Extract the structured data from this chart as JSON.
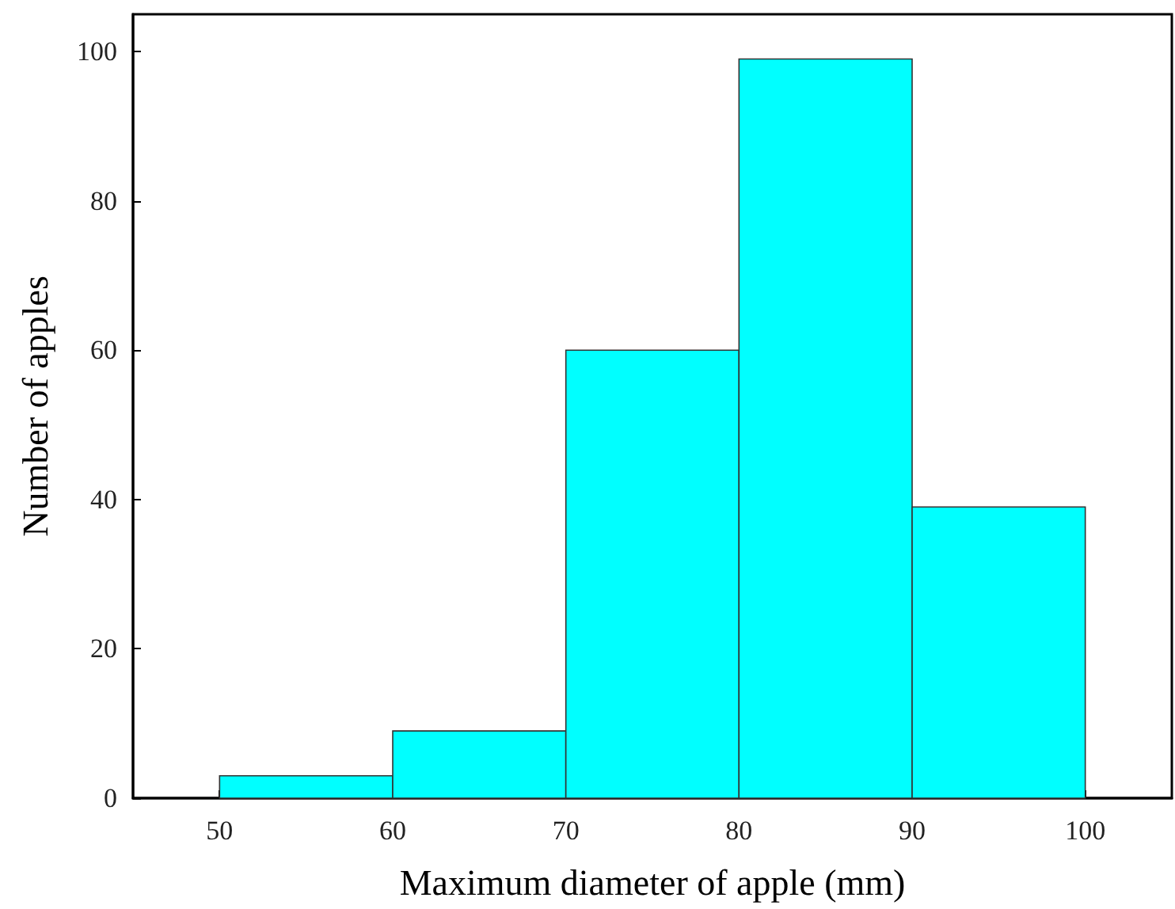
{
  "chart_data": {
    "type": "histogram",
    "xlabel": "Maximum diameter of apple (mm)",
    "ylabel": "Number of apples",
    "bins": [
      50,
      60,
      70,
      80,
      90,
      100
    ],
    "values": [
      3,
      9,
      60,
      99,
      39
    ],
    "color": "#00ffff",
    "xlim": [
      45,
      105
    ],
    "xticks": [
      50,
      60,
      70,
      80,
      90,
      100
    ],
    "ylim": [
      0,
      105
    ],
    "yticks": [
      0,
      20,
      40,
      60,
      80,
      100
    ]
  }
}
